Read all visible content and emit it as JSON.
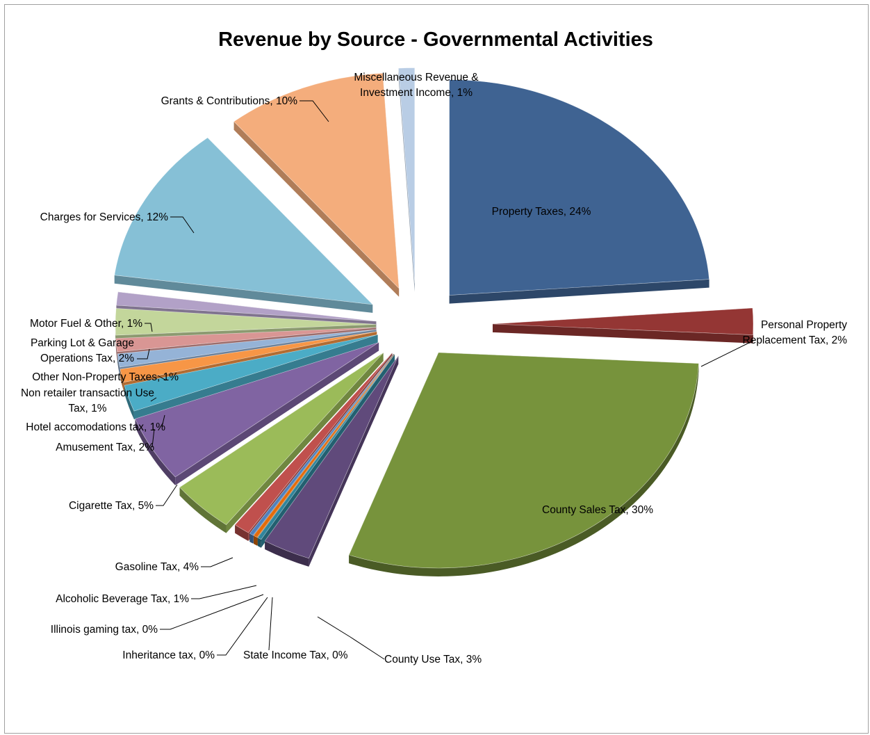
{
  "chart_data": {
    "type": "pie",
    "title": "Revenue by Source - Governmental Activities",
    "style": "3d-exploded",
    "data_labels": "name-and-percent",
    "legend": "none",
    "slices": [
      {
        "name": "Property Taxes",
        "value": 24,
        "label": "Property Taxes, 24%",
        "color": "#3f6392"
      },
      {
        "name": "Personal Property Replacement Tax",
        "value": 2,
        "label": "Personal Property Replacement Tax, 2%",
        "color": "#943634"
      },
      {
        "name": "County Sales Tax",
        "value": 30,
        "label": "County Sales Tax, 30%",
        "color": "#77933c"
      },
      {
        "name": "County Use Tax",
        "value": 3,
        "label": "County Use Tax, 3%",
        "color": "#604a7b"
      },
      {
        "name": "State Income Tax",
        "value": 0,
        "label": "State Income Tax, 0%",
        "color": "#31859c"
      },
      {
        "name": "Inheritance tax",
        "value": 0,
        "label": "Inheritance tax, 0%",
        "color": "#e46c0a"
      },
      {
        "name": "Illinois gaming tax",
        "value": 0,
        "label": "Illinois gaming tax, 0%",
        "color": "#4f81bd"
      },
      {
        "name": "Alcoholic Beverage Tax",
        "value": 1,
        "label": "Alcoholic Beverage Tax, 1%",
        "color": "#c0504d"
      },
      {
        "name": "Gasoline Tax",
        "value": 4,
        "label": "Gasoline Tax, 4%",
        "color": "#9bbb59"
      },
      {
        "name": "Cigarette Tax",
        "value": 5,
        "label": "Cigarette Tax, 5%",
        "color": "#8064a2"
      },
      {
        "name": "Amusement Tax",
        "value": 2,
        "label": "Amusement Tax, 2%",
        "color": "#4bacc6"
      },
      {
        "name": "Hotel accomodations tax",
        "value": 1,
        "label": "Hotel accomodations tax, 1%",
        "color": "#f79646"
      },
      {
        "name": "Non retailer transaction Use Tax",
        "value": 1,
        "label": "Non retailer transaction Use Tax, 1%",
        "color": "#95b3d7"
      },
      {
        "name": "Other Non-Property Taxes",
        "value": 1,
        "label": "Other Non-Property Taxes, 1%",
        "color": "#d99694"
      },
      {
        "name": "Parking Lot & Garage Operations Tax",
        "value": 2,
        "label": "Parking Lot & Garage Operations Tax, 2%",
        "color": "#c3d69b"
      },
      {
        "name": "Motor Fuel & Other",
        "value": 1,
        "label": "Motor Fuel & Other, 1%",
        "color": "#b2a1c7"
      },
      {
        "name": "Charges for Services",
        "value": 12,
        "label": "Charges for Services, 12%",
        "color": "#86c0d6"
      },
      {
        "name": "Grants & Contributions",
        "value": 10,
        "label": "Grants & Contributions, 10%",
        "color": "#f4ad7c"
      },
      {
        "name": "Miscellaneous Revenue & Investment Income",
        "value": 1,
        "label": "Miscellaneous Revenue & Investment Income, 1%",
        "color": "#b9cde5"
      }
    ]
  }
}
